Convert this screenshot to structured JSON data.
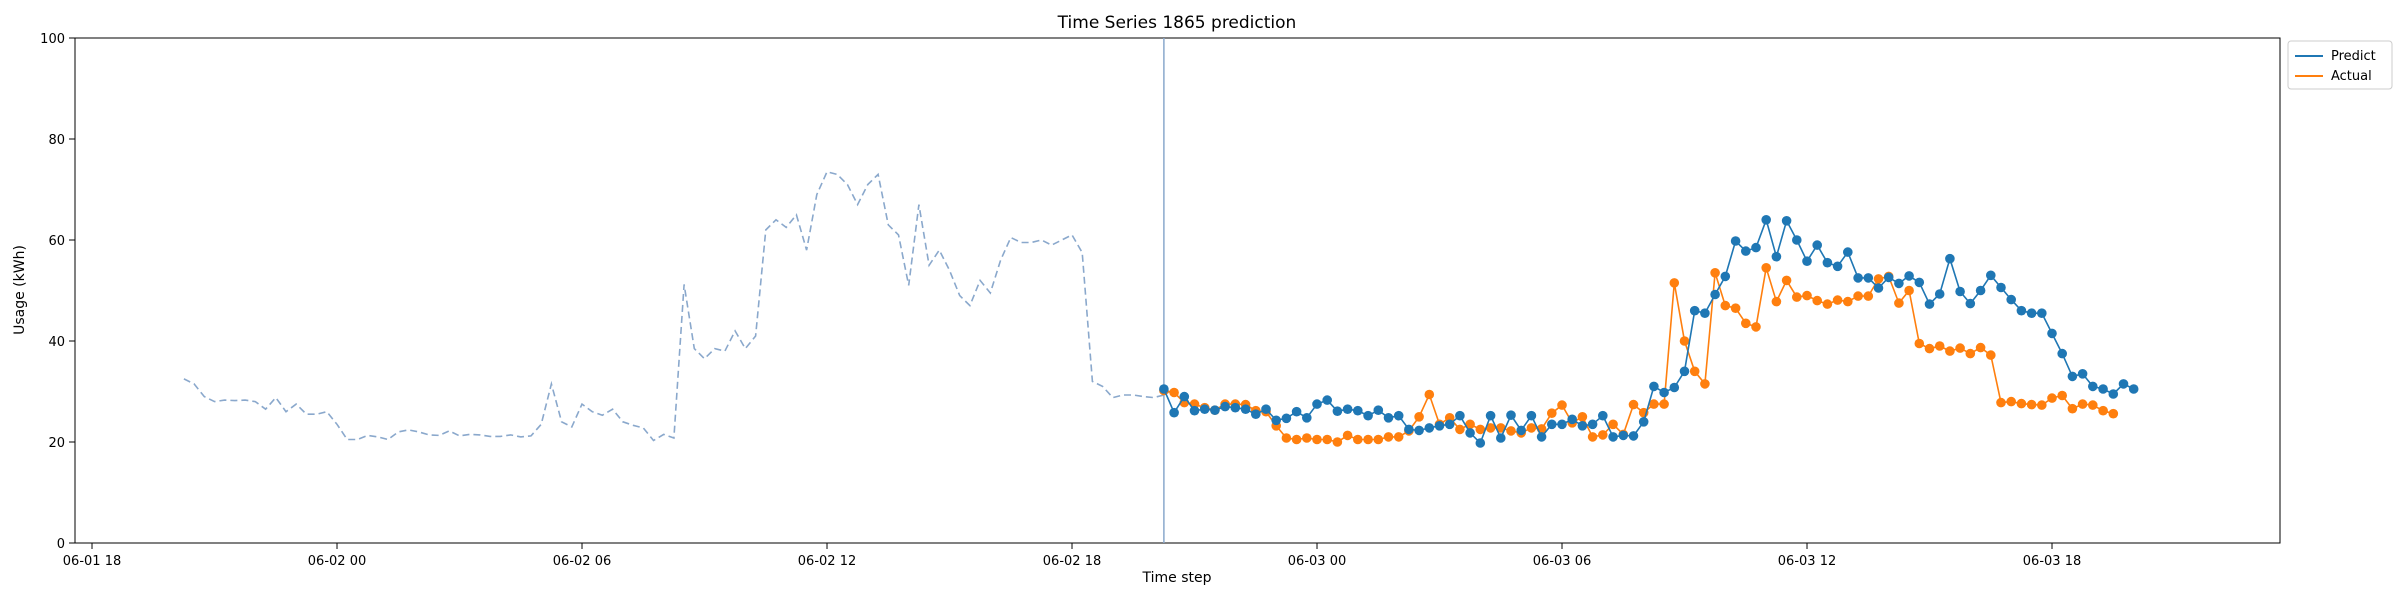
{
  "chart_data": {
    "type": "line",
    "title": "Time Series 1865 prediction",
    "xlabel": "Time step",
    "ylabel": "Usage (kWh)",
    "ylim": [
      0,
      100
    ],
    "x_range": [
      "2024-06-01 17:35",
      "2024-06-03 23:35"
    ],
    "x_ticks": [
      {
        "value": "2024-06-01 18:00",
        "label": "06-01 18"
      },
      {
        "value": "2024-06-02 00:00",
        "label": "06-02 00"
      },
      {
        "value": "2024-06-02 06:00",
        "label": "06-02 06"
      },
      {
        "value": "2024-06-02 12:00",
        "label": "06-02 12"
      },
      {
        "value": "2024-06-02 18:00",
        "label": "06-02 18"
      },
      {
        "value": "2024-06-03 00:00",
        "label": "06-03 00"
      },
      {
        "value": "2024-06-03 06:00",
        "label": "06-03 06"
      },
      {
        "value": "2024-06-03 12:00",
        "label": "06-03 12"
      },
      {
        "value": "2024-06-03 18:00",
        "label": "06-03 18"
      }
    ],
    "y_ticks": [
      0,
      20,
      40,
      60,
      80,
      100
    ],
    "grid": false,
    "legend_position": "upper right, outside plot",
    "forecast_start": "2024-06-02 20:15",
    "colors": {
      "history": "#8aa8cc",
      "predict": "#1f77b4",
      "actual": "#ff7f0e",
      "forecast_marker": "#8aa8cc"
    },
    "history": {
      "start": "2024-06-01 20:15",
      "step_minutes": 15,
      "values": [
        32.5,
        31.5,
        29,
        28,
        28.3,
        28.2,
        28.3,
        28,
        26.5,
        28.8,
        26,
        27.5,
        25.5,
        25.5,
        26,
        23.5,
        20.5,
        20.5,
        21.3,
        21,
        20.5,
        22,
        22.4,
        22,
        21.4,
        21.3,
        22.2,
        21.2,
        21.5,
        21.4,
        21.1,
        21.1,
        21.4,
        21,
        21.2,
        23.5,
        31.5,
        24,
        23,
        27.5,
        26,
        25.3,
        26.5,
        24,
        23.3,
        22.8,
        20.3,
        21.5,
        20.8,
        51.2,
        38.5,
        36.5,
        38.5,
        38,
        42,
        38.5,
        41,
        62,
        64,
        62.5,
        65,
        58,
        69,
        73.5,
        73,
        71,
        67,
        71,
        73,
        63,
        61,
        51,
        67,
        55,
        58,
        54,
        49,
        47,
        52,
        49.5,
        56,
        60.5,
        59.5,
        59.5,
        60,
        59,
        60,
        61,
        57.5,
        32,
        31,
        28.8,
        29.3,
        29.3,
        29,
        28.8,
        29.3,
        30.5
      ]
    },
    "series": [
      {
        "name": "Predict",
        "start": "2024-06-02 20:15",
        "step_minutes": 15,
        "values": [
          30.5,
          25.8,
          29,
          26.2,
          26.5,
          26.3,
          27,
          26.8,
          26.5,
          25.5,
          26.5,
          24.3,
          24.7,
          26,
          24.8,
          27.5,
          28.3,
          26.1,
          26.5,
          26.2,
          25.2,
          26.3,
          24.8,
          25.2,
          22.5,
          22.3,
          22.8,
          23.2,
          23.5,
          25.2,
          21.8,
          19.8,
          25.2,
          20.8,
          25.3,
          22.3,
          25.2,
          21,
          23.5,
          23.5,
          24.5,
          23.2,
          23.5,
          25.2,
          21,
          21.3,
          21.2,
          24,
          31,
          29.8,
          30.8,
          34,
          46,
          45.5,
          49.2,
          52.8,
          59.8,
          57.8,
          58.5,
          64,
          56.7,
          63.8,
          60,
          55.8,
          59,
          55.5,
          54.8,
          57.6,
          52.5,
          52.5,
          50.5,
          52.6,
          51.4,
          52.9,
          51.6,
          47.3,
          49.3,
          56.3,
          49.8,
          47.4,
          50,
          53,
          50.6,
          48.2,
          46,
          45.5,
          45.5,
          41.5,
          37.5,
          33,
          33.5,
          31,
          30.5,
          29.5,
          31.5,
          30.5
        ]
      },
      {
        "name": "Actual",
        "start": "2024-06-02 20:15",
        "step_minutes": 15,
        "values": [
          30.2,
          29.8,
          27.8,
          27.5,
          26.8,
          26.3,
          27.5,
          27.5,
          27.4,
          26.2,
          26,
          23.2,
          20.8,
          20.5,
          20.8,
          20.5,
          20.5,
          20,
          21.3,
          20.5,
          20.5,
          20.5,
          21,
          21,
          22.2,
          25,
          29.4,
          23.5,
          24.8,
          22.5,
          23.5,
          22.5,
          22.8,
          22.8,
          22.2,
          21.8,
          22.8,
          22.6,
          25.7,
          27.3,
          23.8,
          25,
          21,
          21.4,
          23.5,
          21.5,
          27.4,
          25.8,
          27.5,
          27.5,
          51.5,
          40,
          34,
          31.5,
          53.5,
          47,
          46.5,
          43.5,
          42.8,
          54.5,
          47.8,
          52,
          48.7,
          49,
          48,
          47.3,
          48.1,
          47.8,
          48.9,
          48.9,
          52.3,
          52.8,
          47.5,
          50,
          39.5,
          38.5,
          39,
          38,
          38.6,
          37.5,
          38.7,
          37.2,
          27.8,
          28,
          27.6,
          27.4,
          27.3,
          28.7,
          29.2,
          26.6,
          27.5,
          27.3,
          26.2,
          25.6
        ]
      }
    ]
  }
}
